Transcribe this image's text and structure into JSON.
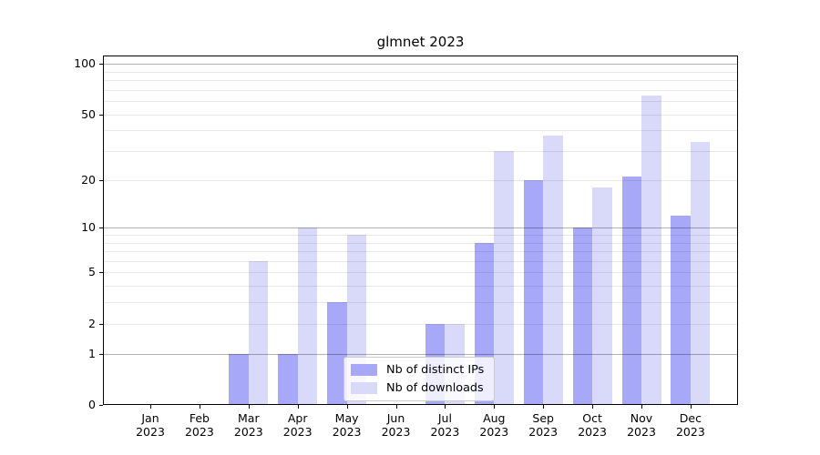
{
  "chart_data": {
    "type": "bar",
    "title": "glmnet 2023",
    "x_categories": [
      "Jan\n2023",
      "Feb\n2023",
      "Mar\n2023",
      "Apr\n2023",
      "May\n2023",
      "Jun\n2023",
      "Jul\n2023",
      "Aug\n2023",
      "Sep\n2023",
      "Oct\n2023",
      "Nov\n2023",
      "Dec\n2023"
    ],
    "series": [
      {
        "name": "Nb of distinct IPs",
        "color": "#a8a8f8",
        "values": [
          0,
          0,
          1,
          1,
          3,
          0,
          2,
          8,
          20,
          10,
          21,
          12
        ]
      },
      {
        "name": "Nb of downloads",
        "color": "#d9d9f9",
        "values": [
          0,
          0,
          6,
          10,
          9,
          0,
          2,
          30,
          37,
          18,
          65,
          34
        ]
      }
    ],
    "yscale": "log1p",
    "ylim": [
      0,
      112
    ],
    "y_tick_labels": [
      0,
      1,
      2,
      5,
      10,
      20,
      50,
      100
    ],
    "major_gridlines": [
      1,
      10,
      100
    ],
    "minor_gridlines": [
      2,
      3,
      4,
      5,
      6,
      7,
      8,
      9,
      20,
      30,
      40,
      50,
      60,
      70,
      80,
      90
    ],
    "grid": true,
    "grid_above_bars": true,
    "legend": {
      "position": "lower center",
      "labels": [
        "Nb of distinct IPs",
        "Nb of downloads"
      ]
    }
  }
}
